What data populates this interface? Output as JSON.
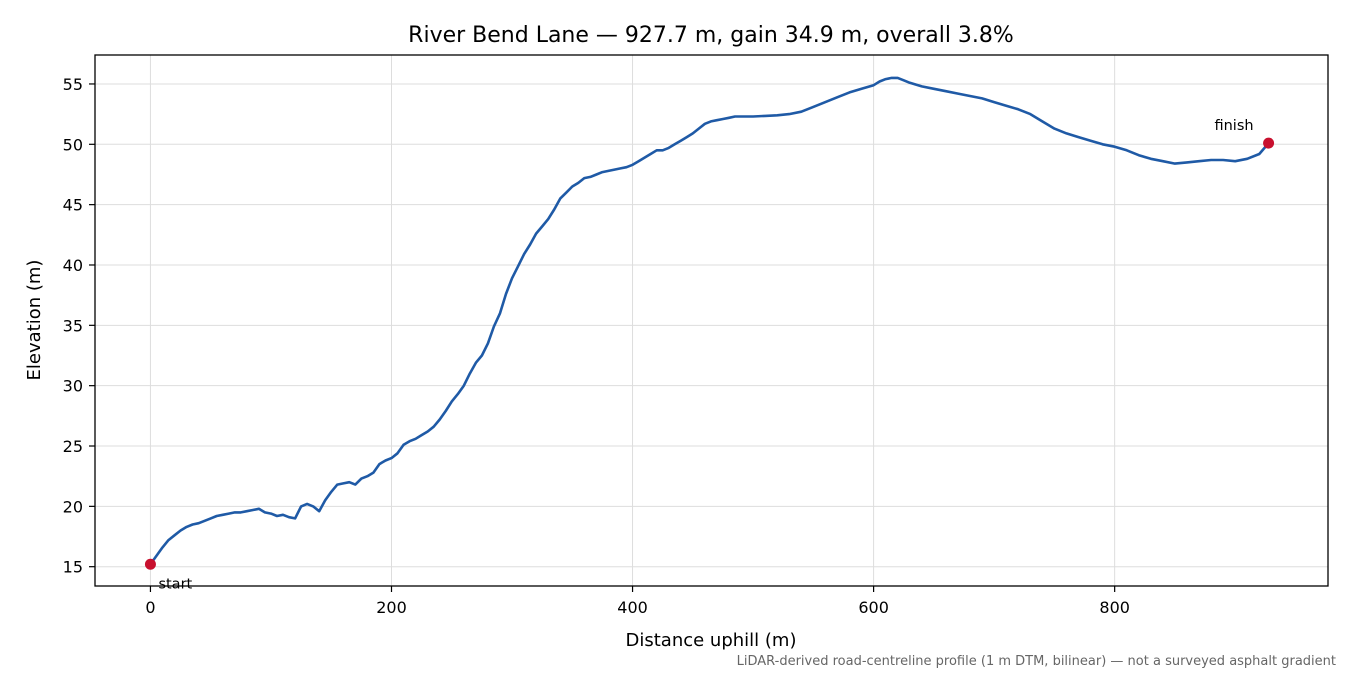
{
  "chart_data": {
    "type": "line",
    "title": "River Bend Lane — 927.7 m, gain 34.9 m, overall 3.8%",
    "xlabel": "Distance uphill (m)",
    "ylabel": "Elevation (m)",
    "xlim": [
      -46,
      977
    ],
    "ylim": [
      13.4,
      57.4
    ],
    "xticks": [
      0,
      200,
      400,
      600,
      800
    ],
    "yticks": [
      15,
      20,
      25,
      30,
      35,
      40,
      45,
      50,
      55
    ],
    "grid": true,
    "line_color": "#1f5aa6",
    "marker_color": "#c8102e",
    "series": [
      {
        "x": [
          0,
          5,
          10,
          15,
          20,
          25,
          30,
          35,
          40,
          45,
          50,
          55,
          60,
          65,
          70,
          75,
          80,
          85,
          90,
          95,
          100,
          105,
          110,
          115,
          120,
          125,
          130,
          135,
          140,
          145,
          150,
          155,
          160,
          165,
          170,
          175,
          180,
          185,
          190,
          195,
          200,
          205,
          210,
          215,
          220,
          225,
          230,
          235,
          240,
          245,
          250,
          255,
          260,
          265,
          270,
          275,
          280,
          285,
          290,
          295,
          300,
          305,
          310,
          315,
          320,
          325,
          330,
          335,
          340,
          345,
          350,
          355,
          360,
          365,
          370,
          375,
          380,
          385,
          390,
          395,
          400,
          405,
          410,
          415,
          420,
          425,
          430,
          435,
          440,
          445,
          450,
          455,
          460,
          465,
          470,
          475,
          480,
          485,
          490,
          495,
          500,
          510,
          520,
          530,
          540,
          550,
          560,
          570,
          580,
          590,
          600,
          605,
          610,
          615,
          620,
          625,
          630,
          640,
          650,
          660,
          670,
          680,
          690,
          700,
          710,
          720,
          730,
          740,
          750,
          760,
          770,
          780,
          790,
          800,
          810,
          820,
          830,
          840,
          850,
          860,
          870,
          880,
          890,
          900,
          910,
          920,
          927.7
        ],
        "y": [
          15.2,
          15.9,
          16.6,
          17.2,
          17.6,
          18.0,
          18.3,
          18.5,
          18.6,
          18.8,
          19.0,
          19.2,
          19.3,
          19.4,
          19.5,
          19.5,
          19.6,
          19.7,
          19.8,
          19.5,
          19.4,
          19.2,
          19.3,
          19.1,
          19.0,
          20.0,
          20.2,
          20.0,
          19.6,
          20.5,
          21.2,
          21.8,
          21.9,
          22.0,
          21.8,
          22.3,
          22.5,
          22.8,
          23.5,
          23.8,
          24.0,
          24.4,
          25.1,
          25.4,
          25.6,
          25.9,
          26.2,
          26.6,
          27.2,
          27.9,
          28.7,
          29.3,
          30.0,
          31.0,
          31.9,
          32.5,
          33.5,
          34.9,
          36.0,
          37.6,
          38.9,
          39.9,
          40.9,
          41.7,
          42.6,
          43.2,
          43.8,
          44.6,
          45.5,
          46.0,
          46.5,
          46.8,
          47.2,
          47.3,
          47.5,
          47.7,
          47.8,
          47.9,
          48.0,
          48.1,
          48.3,
          48.6,
          48.9,
          49.2,
          49.5,
          49.5,
          49.7,
          50.0,
          50.3,
          50.6,
          50.9,
          51.3,
          51.7,
          51.9,
          52.0,
          52.1,
          52.2,
          52.3,
          52.3,
          52.3,
          52.3,
          52.35,
          52.4,
          52.5,
          52.7,
          53.1,
          53.5,
          53.9,
          54.3,
          54.6,
          54.9,
          55.2,
          55.4,
          55.5,
          55.5,
          55.3,
          55.1,
          54.8,
          54.6,
          54.4,
          54.2,
          54.0,
          53.8,
          53.5,
          53.2,
          52.9,
          52.5,
          51.9,
          51.3,
          50.9,
          50.6,
          50.3,
          50.0,
          49.8,
          49.5,
          49.1,
          48.8,
          48.6,
          48.4,
          48.5,
          48.6,
          48.7,
          48.7,
          48.6,
          48.8,
          49.2,
          50.1
        ]
      }
    ],
    "annotations": [
      {
        "text": "start",
        "x": 0,
        "y": 15.2
      },
      {
        "text": "finish",
        "x": 927.7,
        "y": 50.1
      }
    ],
    "footnote": "LiDAR-derived road-centreline profile (1 m DTM, bilinear) — not a surveyed asphalt gradient"
  }
}
